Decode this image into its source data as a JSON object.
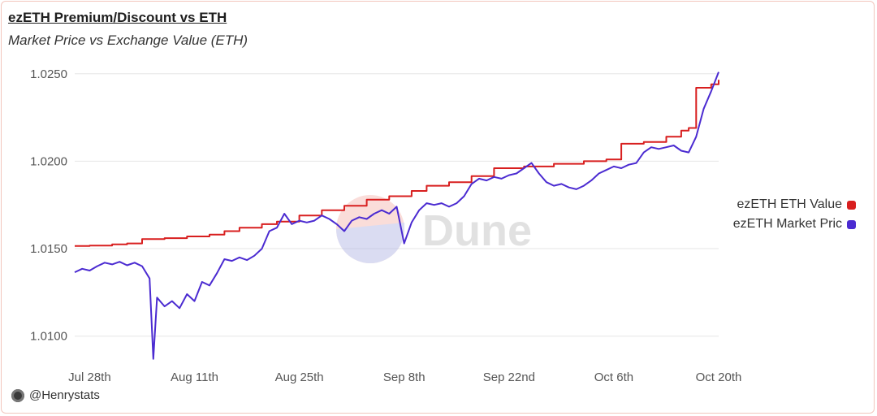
{
  "header": {
    "title": "ezETH Premium/Discount vs ETH",
    "subtitle": "Market Price vs Exchange Value (ETH)"
  },
  "footer": {
    "author": "@Henrystats"
  },
  "watermark": {
    "text": "Dune"
  },
  "colors": {
    "value": "#d81f1f",
    "market": "#4b2bd1",
    "grid": "#e6e6e6"
  },
  "chart_data": {
    "type": "line",
    "title": "ezETH Premium/Discount vs ETH",
    "subtitle": "Market Price vs Exchange Value (ETH)",
    "xlabel": "",
    "ylabel": "",
    "x_ticks": [
      {
        "label": "Jul 28th",
        "date": "2024-07-28"
      },
      {
        "label": "Aug 11th",
        "date": "2024-08-11"
      },
      {
        "label": "Aug 25th",
        "date": "2024-08-25"
      },
      {
        "label": "Sep 8th",
        "date": "2024-09-08"
      },
      {
        "label": "Sep 22nd",
        "date": "2024-09-22"
      },
      {
        "label": "Oct 6th",
        "date": "2024-10-06"
      },
      {
        "label": "Oct 20th",
        "date": "2024-10-20"
      }
    ],
    "y_ticks": [
      "1.0100",
      "1.0150",
      "1.0200",
      "1.0250"
    ],
    "ylim": [
      1.0085,
      1.0255
    ],
    "xlim": [
      "2024-07-26",
      "2024-10-20"
    ],
    "grid": true,
    "legend_position": "right",
    "series": [
      {
        "name": "ezETH ETH Value",
        "color": "#d81f1f",
        "step": true,
        "points": [
          [
            "2024-07-26",
            1.01515
          ],
          [
            "2024-07-28",
            1.01518
          ],
          [
            "2024-07-31",
            1.01525
          ],
          [
            "2024-08-02",
            1.0153
          ],
          [
            "2024-08-04",
            1.01555
          ],
          [
            "2024-08-07",
            1.0156
          ],
          [
            "2024-08-10",
            1.0157
          ],
          [
            "2024-08-13",
            1.0158
          ],
          [
            "2024-08-15",
            1.016
          ],
          [
            "2024-08-17",
            1.0162
          ],
          [
            "2024-08-20",
            1.0164
          ],
          [
            "2024-08-22",
            1.01655
          ],
          [
            "2024-08-25",
            1.0169
          ],
          [
            "2024-08-28",
            1.0172
          ],
          [
            "2024-08-31",
            1.01745
          ],
          [
            "2024-09-03",
            1.0178
          ],
          [
            "2024-09-06",
            1.018
          ],
          [
            "2024-09-09",
            1.0183
          ],
          [
            "2024-09-11",
            1.0186
          ],
          [
            "2024-09-14",
            1.0188
          ],
          [
            "2024-09-17",
            1.01915
          ],
          [
            "2024-09-20",
            1.0196
          ],
          [
            "2024-09-24",
            1.0197
          ],
          [
            "2024-09-28",
            1.01985
          ],
          [
            "2024-10-02",
            1.02
          ],
          [
            "2024-10-05",
            1.0201
          ],
          [
            "2024-10-07",
            1.021
          ],
          [
            "2024-10-10",
            1.0211
          ],
          [
            "2024-10-13",
            1.0214
          ],
          [
            "2024-10-15",
            1.02175
          ],
          [
            "2024-10-16",
            1.0219
          ],
          [
            "2024-10-17",
            1.0242
          ],
          [
            "2024-10-19",
            1.0244
          ],
          [
            "2024-10-20",
            1.02465
          ]
        ]
      },
      {
        "name": "ezETH Market Pric",
        "color": "#4b2bd1",
        "step": false,
        "points": [
          [
            "2024-07-26",
            1.01365
          ],
          [
            "2024-07-27",
            1.01385
          ],
          [
            "2024-07-28",
            1.01375
          ],
          [
            "2024-07-29",
            1.014
          ],
          [
            "2024-07-30",
            1.0142
          ],
          [
            "2024-07-31",
            1.0141
          ],
          [
            "2024-08-01",
            1.01425
          ],
          [
            "2024-08-02",
            1.01405
          ],
          [
            "2024-08-03",
            1.0142
          ],
          [
            "2024-08-04",
            1.014
          ],
          [
            "2024-08-05",
            1.0133
          ],
          [
            "2024-08-05T12",
            1.0087
          ],
          [
            "2024-08-06",
            1.0122
          ],
          [
            "2024-08-07",
            1.0117
          ],
          [
            "2024-08-08",
            1.012
          ],
          [
            "2024-08-09",
            1.0116
          ],
          [
            "2024-08-10",
            1.0124
          ],
          [
            "2024-08-11",
            1.012
          ],
          [
            "2024-08-12",
            1.0131
          ],
          [
            "2024-08-13",
            1.0129
          ],
          [
            "2024-08-14",
            1.0136
          ],
          [
            "2024-08-15",
            1.0144
          ],
          [
            "2024-08-16",
            1.0143
          ],
          [
            "2024-08-17",
            1.0145
          ],
          [
            "2024-08-18",
            1.01435
          ],
          [
            "2024-08-19",
            1.0146
          ],
          [
            "2024-08-20",
            1.015
          ],
          [
            "2024-08-21",
            1.016
          ],
          [
            "2024-08-22",
            1.0162
          ],
          [
            "2024-08-23",
            1.017
          ],
          [
            "2024-08-24",
            1.0164
          ],
          [
            "2024-08-25",
            1.0166
          ],
          [
            "2024-08-26",
            1.0165
          ],
          [
            "2024-08-27",
            1.0166
          ],
          [
            "2024-08-28",
            1.0169
          ],
          [
            "2024-08-29",
            1.0167
          ],
          [
            "2024-08-30",
            1.0164
          ],
          [
            "2024-08-31",
            1.016
          ],
          [
            "2024-09-01",
            1.0166
          ],
          [
            "2024-09-02",
            1.0168
          ],
          [
            "2024-09-03",
            1.0167
          ],
          [
            "2024-09-04",
            1.017
          ],
          [
            "2024-09-05",
            1.0172
          ],
          [
            "2024-09-06",
            1.017
          ],
          [
            "2024-09-07",
            1.0174
          ],
          [
            "2024-09-08",
            1.0153
          ],
          [
            "2024-09-09",
            1.0165
          ],
          [
            "2024-09-10",
            1.0172
          ],
          [
            "2024-09-11",
            1.0176
          ],
          [
            "2024-09-12",
            1.0175
          ],
          [
            "2024-09-13",
            1.0176
          ],
          [
            "2024-09-14",
            1.0174
          ],
          [
            "2024-09-15",
            1.0176
          ],
          [
            "2024-09-16",
            1.018
          ],
          [
            "2024-09-17",
            1.0187
          ],
          [
            "2024-09-18",
            1.019
          ],
          [
            "2024-09-19",
            1.0189
          ],
          [
            "2024-09-20",
            1.0191
          ],
          [
            "2024-09-21",
            1.019
          ],
          [
            "2024-09-22",
            1.0192
          ],
          [
            "2024-09-23",
            1.0193
          ],
          [
            "2024-09-24",
            1.0196
          ],
          [
            "2024-09-25",
            1.0199
          ],
          [
            "2024-09-26",
            1.0193
          ],
          [
            "2024-09-27",
            1.0188
          ],
          [
            "2024-09-28",
            1.0186
          ],
          [
            "2024-09-29",
            1.0187
          ],
          [
            "2024-09-30",
            1.0185
          ],
          [
            "2024-10-01",
            1.0184
          ],
          [
            "2024-10-02",
            1.0186
          ],
          [
            "2024-10-03",
            1.0189
          ],
          [
            "2024-10-04",
            1.0193
          ],
          [
            "2024-10-05",
            1.0195
          ],
          [
            "2024-10-06",
            1.0197
          ],
          [
            "2024-10-07",
            1.0196
          ],
          [
            "2024-10-08",
            1.0198
          ],
          [
            "2024-10-09",
            1.0199
          ],
          [
            "2024-10-10",
            1.0205
          ],
          [
            "2024-10-11",
            1.0208
          ],
          [
            "2024-10-12",
            1.0207
          ],
          [
            "2024-10-13",
            1.0208
          ],
          [
            "2024-10-14",
            1.0209
          ],
          [
            "2024-10-15",
            1.0206
          ],
          [
            "2024-10-16",
            1.0205
          ],
          [
            "2024-10-17",
            1.0214
          ],
          [
            "2024-10-18",
            1.023
          ],
          [
            "2024-10-19",
            1.024
          ],
          [
            "2024-10-20",
            1.0251
          ]
        ]
      }
    ]
  }
}
